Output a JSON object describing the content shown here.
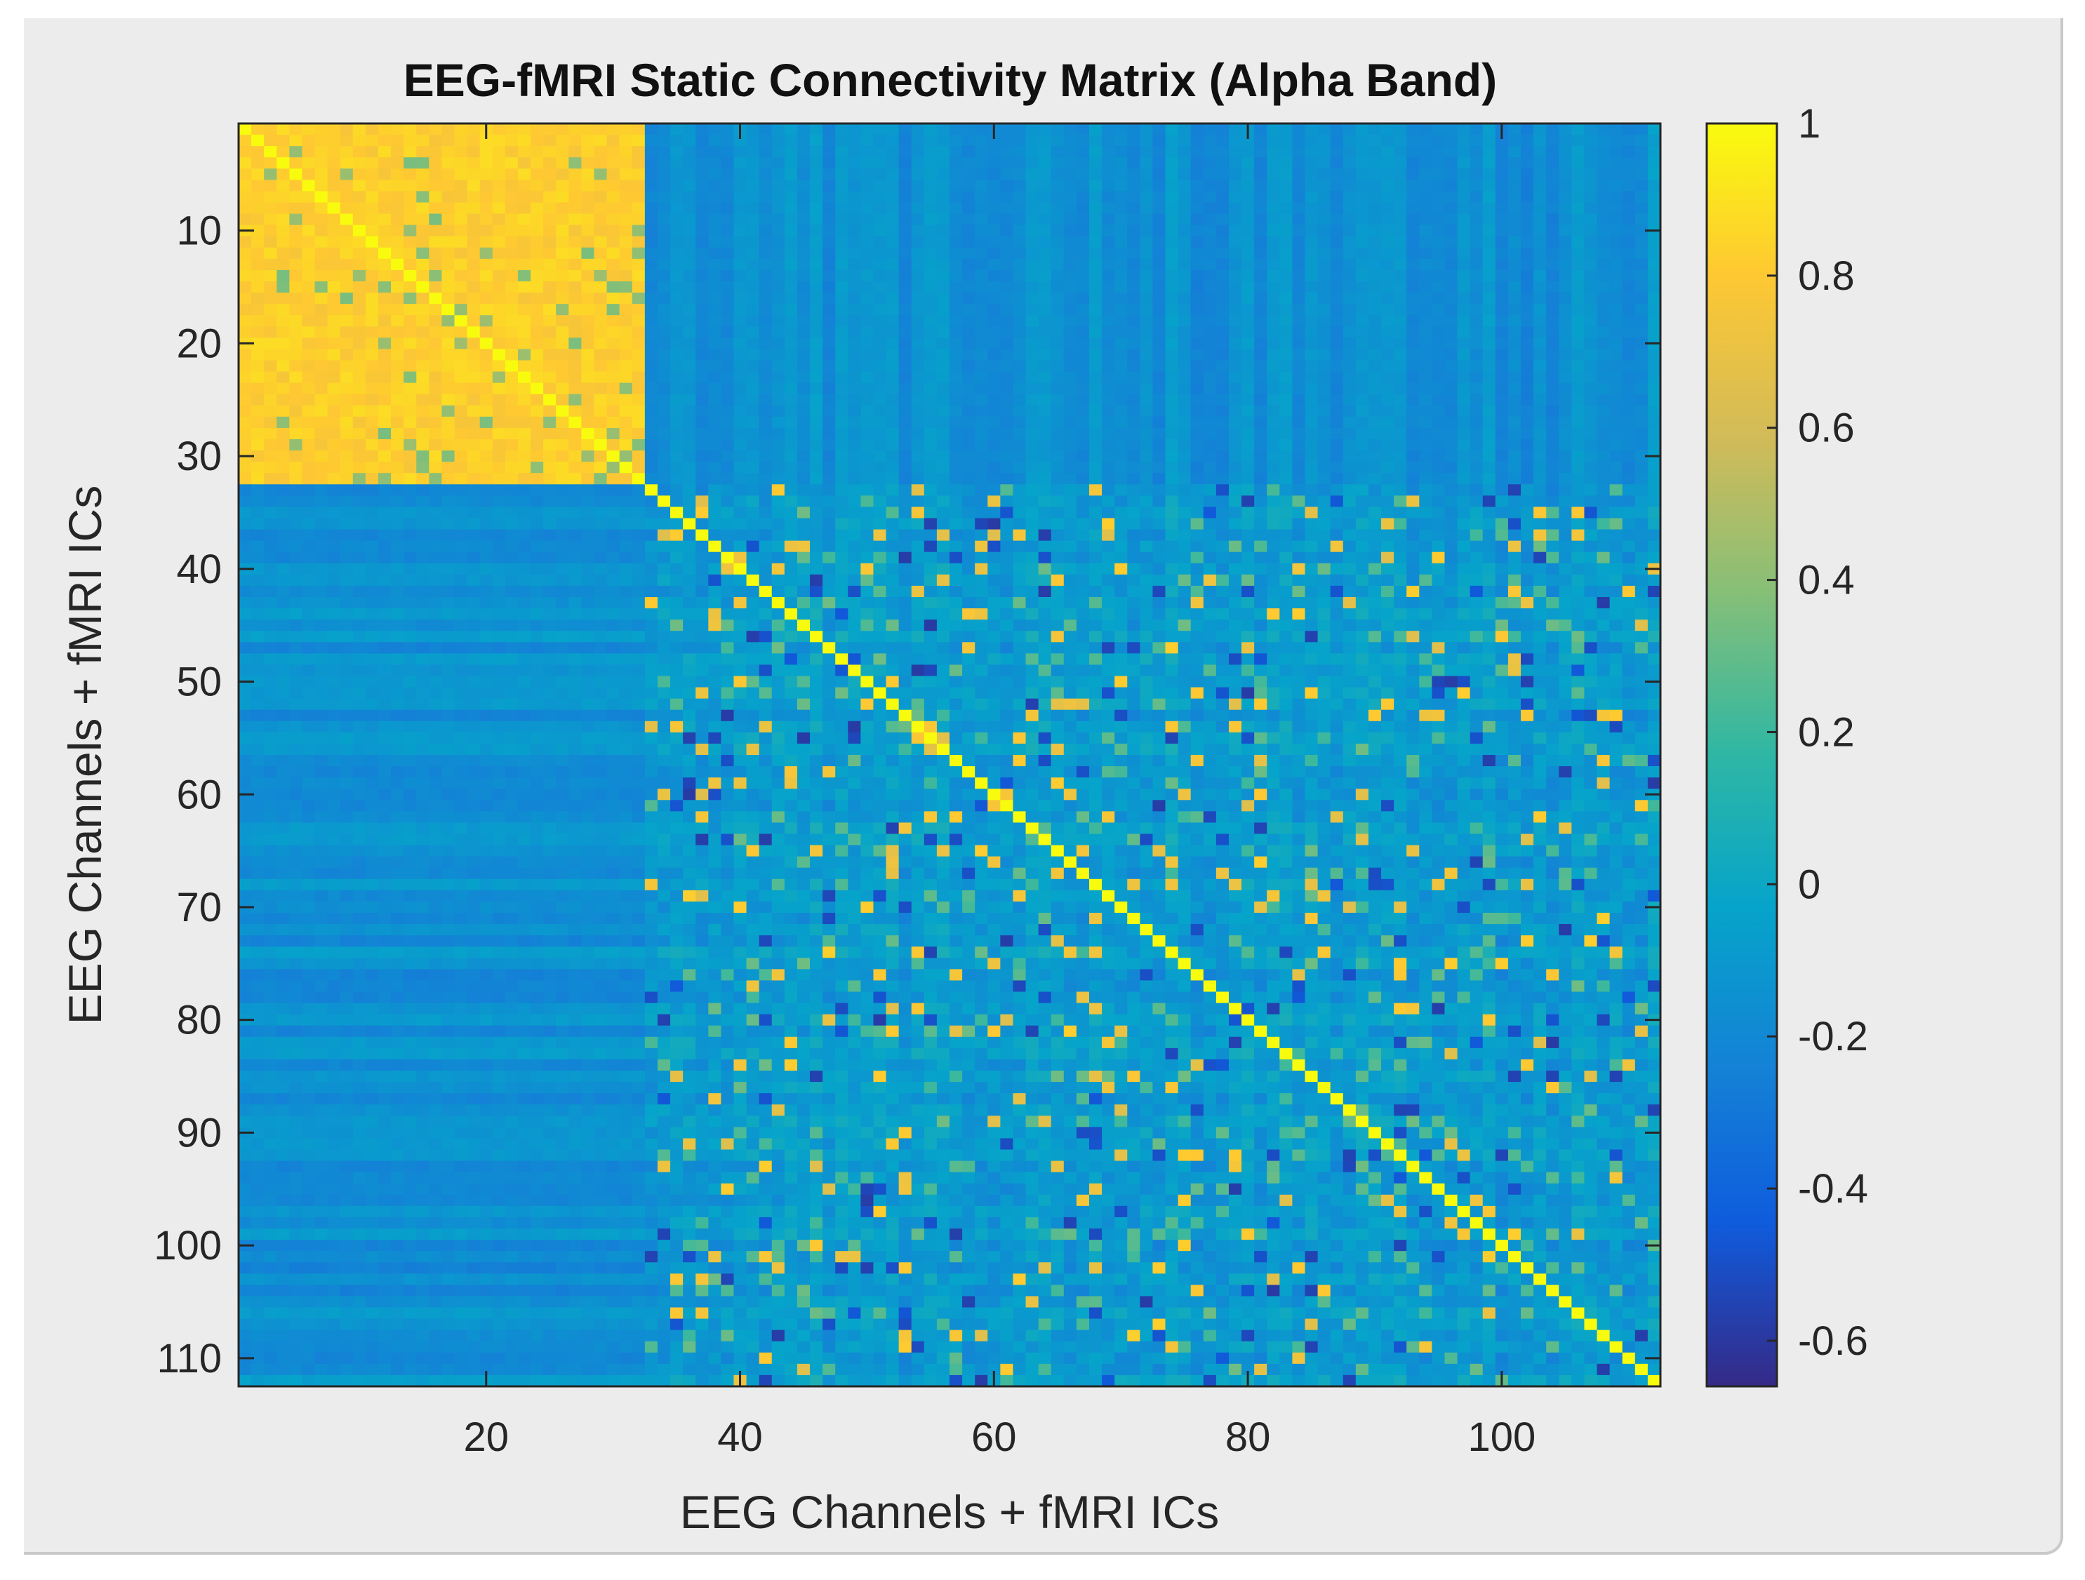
{
  "chart_data": {
    "type": "heatmap",
    "title": "EEG-fMRI Static Connectivity Matrix (Alpha Band)",
    "xlabel": "EEG Channels + fMRI ICs",
    "ylabel": "EEG Channels + fMRI ICs",
    "n": 112,
    "eeg_block_size": 32,
    "xlim": [
      0.5,
      112.5
    ],
    "ylim": [
      0.5,
      112.5
    ],
    "x_ticks": [
      20,
      40,
      60,
      80,
      100
    ],
    "y_ticks": [
      10,
      20,
      30,
      40,
      50,
      60,
      70,
      80,
      90,
      100,
      110
    ],
    "y_direction": "reversed",
    "diagonal_value": 1,
    "approx_values": {
      "eeg_eeg_block": 0.82,
      "eeg_fmri_cross": -0.15,
      "fmri_fmri_background": -0.08
    },
    "colorbar": {
      "colormap": "parula",
      "range": [
        -0.66,
        1.0
      ],
      "ticks": [
        1,
        0.8,
        0.6,
        0.4,
        0.2,
        0,
        -0.2,
        -0.4,
        -0.6
      ],
      "tick_labels": [
        "1",
        "0.8",
        "0.6",
        "0.4",
        "0.2",
        "0",
        "-0.2",
        "-0.4",
        "-0.6"
      ]
    },
    "grid": false,
    "legend": "none"
  }
}
